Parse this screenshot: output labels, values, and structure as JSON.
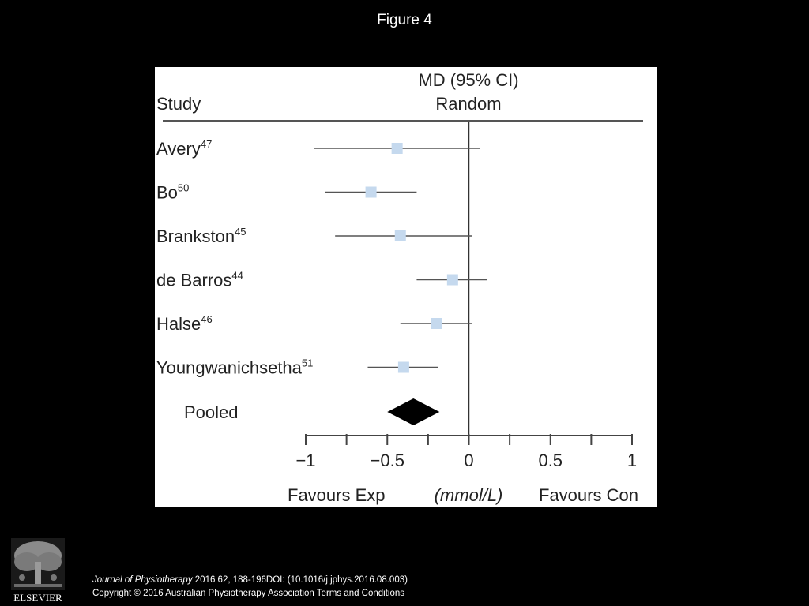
{
  "slide": {
    "title": "Figure 4"
  },
  "chart_data": {
    "type": "forest",
    "header": {
      "study_label": "Study",
      "effect_label_line1": "MD (95% CI)",
      "effect_label_line2": "Random"
    },
    "studies": [
      {
        "name": "Avery",
        "ref": "47",
        "md": -0.44,
        "ci_low": -0.95,
        "ci_high": 0.07
      },
      {
        "name": "Bo",
        "ref": "50",
        "md": -0.6,
        "ci_low": -0.88,
        "ci_high": -0.32
      },
      {
        "name": "Brankston",
        "ref": "45",
        "md": -0.42,
        "ci_low": -0.82,
        "ci_high": 0.02
      },
      {
        "name": "de Barros",
        "ref": "44",
        "md": -0.1,
        "ci_low": -0.32,
        "ci_high": 0.11
      },
      {
        "name": "Halse",
        "ref": "46",
        "md": -0.2,
        "ci_low": -0.42,
        "ci_high": 0.02
      },
      {
        "name": "Youngwanichsetha",
        "ref": "51",
        "md": -0.4,
        "ci_low": -0.62,
        "ci_high": -0.19
      }
    ],
    "pooled": {
      "label": "Pooled",
      "md": -0.34,
      "ci_low": -0.5,
      "ci_high": -0.18
    },
    "x_axis": {
      "min": -1,
      "max": 1,
      "ticks": [
        -1,
        -0.75,
        -0.5,
        -0.25,
        0,
        0.25,
        0.5,
        0.75,
        1
      ],
      "tick_labels": [
        {
          "value": -1,
          "text": "−1"
        },
        {
          "value": -0.5,
          "text": "−0.5"
        },
        {
          "value": 0,
          "text": "0"
        },
        {
          "value": 0.5,
          "text": "0.5"
        },
        {
          "value": 1,
          "text": "1"
        }
      ],
      "left_label": "Favours Exp",
      "unit_label": "(mmol/L)",
      "right_label": "Favours Con"
    },
    "colors": {
      "marker": "#c5d9ee",
      "line": "#555555",
      "pooled": "#000000"
    }
  },
  "footer": {
    "journal": "Journal of Physiotherapy",
    "citation": " 2016 62, 188-196DOI: (10.1016/j.jphys.2016.08.003)",
    "copyright": "Copyright © 2016 Australian Physiotherapy Association",
    "terms_link": " Terms and Conditions"
  },
  "publisher": {
    "name": "ELSEVIER"
  }
}
